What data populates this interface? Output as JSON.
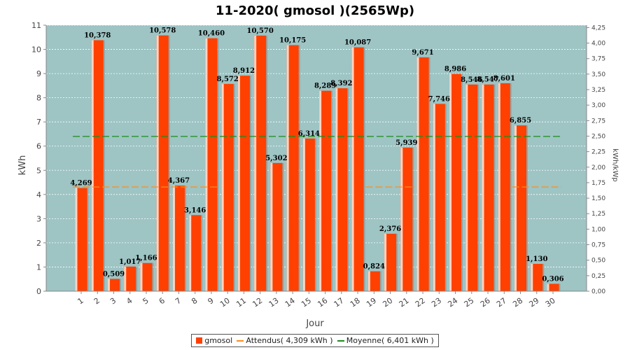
{
  "chart_data": {
    "type": "bar",
    "title": "11-2020( gmosol )(2565Wp)",
    "xlabel": "Jour",
    "ylabel": "kWh",
    "ylabel_right": "kWh/kWp",
    "categories": [
      "1",
      "2",
      "3",
      "4",
      "5",
      "6",
      "7",
      "8",
      "9",
      "10",
      "11",
      "12",
      "13",
      "14",
      "15",
      "16",
      "17",
      "18",
      "19",
      "20",
      "21",
      "22",
      "23",
      "24",
      "25",
      "26",
      "27",
      "28",
      "29",
      "30"
    ],
    "series": [
      {
        "name": "gmosol",
        "color": "#ff4000",
        "values": [
          4.269,
          10.378,
          0.509,
          1.017,
          1.166,
          10.578,
          4.367,
          3.146,
          10.46,
          8.572,
          8.912,
          10.57,
          5.302,
          10.175,
          6.314,
          8.289,
          8.392,
          10.087,
          0.824,
          2.376,
          5.939,
          9.671,
          7.746,
          8.986,
          8.546,
          8.547,
          8.601,
          6.855,
          1.13,
          0.306
        ],
        "labels": [
          "4,269",
          "10,378",
          "0,509",
          "1,017",
          "1,166",
          "10,578",
          "4,367",
          "3,146",
          "10,460",
          "8,572",
          "8,912",
          "10,570",
          "5,302",
          "10,175",
          "6,314",
          "8,289",
          "8,392",
          "10,087",
          "0,824",
          "2,376",
          "5,939",
          "9,671",
          "7,746",
          "8,986",
          "8,546",
          "8,547",
          "8,601",
          "6,855",
          "1,130",
          "0,306"
        ]
      }
    ],
    "lines": [
      {
        "name": "Attendus( 4,309 kWh )",
        "value": 4.309,
        "color": "#ff8c1a",
        "range": "intermittent"
      },
      {
        "name": "Moyenne( 6,401 kWh )",
        "value": 6.401,
        "color": "#1a8c1a",
        "range": "all"
      }
    ],
    "ylim": [
      0,
      11
    ],
    "yticks": [
      0,
      1,
      2,
      3,
      4,
      5,
      6,
      7,
      8,
      9,
      10,
      11
    ],
    "ylim_right": [
      0,
      4.2885
    ],
    "yticks_right": [
      "0,00",
      "0,25",
      "0,50",
      "0,75",
      "1,00",
      "1,25",
      "1,50",
      "1,75",
      "2,00",
      "2,25",
      "2,50",
      "2,75",
      "3,00",
      "3,25",
      "3,50",
      "3,75",
      "4,00",
      "4,25"
    ],
    "plot_background": "#9ec4c4",
    "grid": true,
    "legend_position": "bottom"
  }
}
